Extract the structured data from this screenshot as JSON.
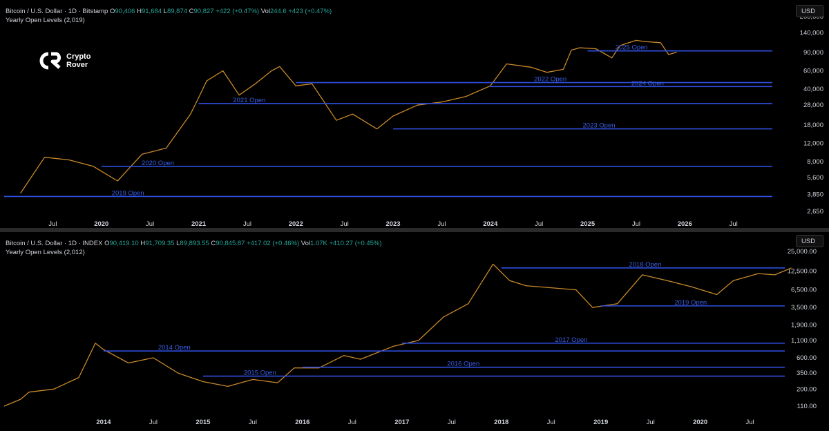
{
  "chart_data": [
    {
      "type": "line",
      "symbol_title": "Bitcoin / U.S. Dollar · 1D · Bitstamp",
      "ohlc": [
        {
          "k": "O",
          "v": "90,406"
        },
        {
          "k": "H",
          "v": "91,684"
        },
        {
          "k": "L",
          "v": "89,874"
        },
        {
          "k": "C",
          "v": "90,827"
        }
      ],
      "change": "+422 (+0.47%)",
      "vol_label": "Vol",
      "vol_value": "244.6",
      "vol_change": "+423 (+0.47%)",
      "study": "Yearly Open Levels (2,019)",
      "currency_button": "USD",
      "scale": "log",
      "ylim": [
        2650,
        200000
      ],
      "y_ticks": [
        "200,000",
        "140,000",
        "90,000",
        "60,000",
        "40,000",
        "28,000",
        "18,000",
        "12,000",
        "8,000",
        "5,600",
        "3,850",
        "2,650"
      ],
      "x_ticks": [
        {
          "label": "Jul",
          "bold": false
        },
        {
          "label": "2020",
          "bold": true
        },
        {
          "label": "Jul",
          "bold": false
        },
        {
          "label": "2021",
          "bold": true
        },
        {
          "label": "Jul",
          "bold": false
        },
        {
          "label": "2022",
          "bold": true
        },
        {
          "label": "Jul",
          "bold": false
        },
        {
          "label": "2023",
          "bold": true
        },
        {
          "label": "Jul",
          "bold": false
        },
        {
          "label": "2024",
          "bold": true
        },
        {
          "label": "Jul",
          "bold": false
        },
        {
          "label": "2025",
          "bold": true
        },
        {
          "label": "Jul",
          "bold": false
        },
        {
          "label": "2026",
          "bold": true
        },
        {
          "label": "Jul",
          "bold": false
        }
      ],
      "levels": [
        {
          "label": "2019 Open",
          "value": 3690,
          "start": "2019-01-01"
        },
        {
          "label": "2020 Open",
          "value": 7200,
          "start": "2020-01-01"
        },
        {
          "label": "2021 Open",
          "value": 29000,
          "start": "2021-01-01"
        },
        {
          "label": "2022 Open",
          "value": 46200,
          "start": "2022-01-01"
        },
        {
          "label": "2023 Open",
          "value": 16550,
          "start": "2023-01-01"
        },
        {
          "label": "2024 Open",
          "value": 42300,
          "start": "2024-01-01"
        },
        {
          "label": "2025 Open",
          "value": 93400,
          "start": "2025-01-01"
        }
      ],
      "series": [
        {
          "x": [
            "2019-03",
            "2019-06",
            "2019-09",
            "2019-12",
            "2020-03",
            "2020-06",
            "2020-09",
            "2020-12",
            "2021-01",
            "2021-02",
            "2021-04",
            "2021-06",
            "2021-08",
            "2021-10",
            "2021-11",
            "2022-01",
            "2022-03",
            "2022-06",
            "2022-08",
            "2022-11",
            "2023-01",
            "2023-04",
            "2023-07",
            "2023-10",
            "2024-01",
            "2024-03",
            "2024-06",
            "2024-08",
            "2024-10",
            "2024-11",
            "2024-12",
            "2025-02",
            "2025-04",
            "2025-05",
            "2025-07",
            "2025-08",
            "2025-10",
            "2025-11",
            "2025-12"
          ],
          "y": [
            3950,
            8800,
            8300,
            7200,
            5200,
            9400,
            10800,
            23000,
            33000,
            48000,
            60000,
            35000,
            45000,
            60000,
            66000,
            43000,
            45000,
            20000,
            23000,
            16500,
            22000,
            28000,
            30000,
            34000,
            43000,
            70000,
            65000,
            58000,
            62000,
            95000,
            100000,
            98000,
            80000,
            105000,
            118000,
            115000,
            112000,
            86000,
            90827
          ]
        }
      ]
    },
    {
      "type": "line",
      "symbol_title": "Bitcoin / U.S. Dollar · 1D · INDEX",
      "ohlc": [
        {
          "k": "O",
          "v": "90,419.10"
        },
        {
          "k": "H",
          "v": "91,709.35"
        },
        {
          "k": "L",
          "v": "89,893.55"
        },
        {
          "k": "C",
          "v": "90,845.87"
        }
      ],
      "change": "+417.02 (+0.46%)",
      "vol_label": "Vol",
      "vol_value": "1.07K",
      "vol_change": "+410.27 (+0.45%)",
      "study": "Yearly Open Levels (2,012)",
      "currency_button": "USD",
      "scale": "log",
      "ylim": [
        110,
        25000
      ],
      "y_ticks": [
        "25,000.00",
        "12,500.00",
        "6,500.00",
        "3,500.00",
        "1,900.00",
        "1,100.00",
        "600.00",
        "350.00",
        "200.00",
        "110.00"
      ],
      "x_ticks": [
        {
          "label": "2014",
          "bold": true
        },
        {
          "label": "Jul",
          "bold": false
        },
        {
          "label": "2015",
          "bold": true
        },
        {
          "label": "Jul",
          "bold": false
        },
        {
          "label": "2016",
          "bold": true
        },
        {
          "label": "Jul",
          "bold": false
        },
        {
          "label": "2017",
          "bold": true
        },
        {
          "label": "Jul",
          "bold": false
        },
        {
          "label": "2018",
          "bold": true
        },
        {
          "label": "Jul",
          "bold": false
        },
        {
          "label": "2019",
          "bold": true
        },
        {
          "label": "Jul",
          "bold": false
        },
        {
          "label": "2020",
          "bold": true
        },
        {
          "label": "Jul",
          "bold": false
        }
      ],
      "levels": [
        {
          "label": "2014 Open",
          "value": 760,
          "start": "2014-01-01"
        },
        {
          "label": "2015 Open",
          "value": 315,
          "start": "2015-01-01"
        },
        {
          "label": "2016 Open",
          "value": 430,
          "start": "2016-01-01"
        },
        {
          "label": "2017 Open",
          "value": 1000,
          "start": "2017-01-01"
        },
        {
          "label": "2018 Open",
          "value": 14000,
          "start": "2018-01-01"
        },
        {
          "label": "2019 Open",
          "value": 3700,
          "start": "2019-01-01"
        }
      ],
      "series": [
        {
          "x": [
            "2013-01",
            "2013-03",
            "2013-04",
            "2013-07",
            "2013-10",
            "2013-12",
            "2014-01",
            "2014-04",
            "2014-07",
            "2014-10",
            "2015-01",
            "2015-04",
            "2015-07",
            "2015-10",
            "2015-12",
            "2016-03",
            "2016-06",
            "2016-08",
            "2016-12",
            "2017-03",
            "2017-06",
            "2017-09",
            "2017-12",
            "2018-02",
            "2018-04",
            "2018-07",
            "2018-10",
            "2018-12",
            "2019-03",
            "2019-06",
            "2019-09",
            "2019-12",
            "2020-03",
            "2020-05",
            "2020-08",
            "2020-10",
            "2020-12"
          ],
          "y": [
            110,
            140,
            180,
            200,
            300,
            1000,
            800,
            500,
            600,
            350,
            260,
            220,
            280,
            250,
            420,
            420,
            650,
            570,
            900,
            1100,
            2500,
            4000,
            16000,
            9000,
            7500,
            7000,
            6500,
            3500,
            4000,
            11000,
            9000,
            7200,
            5500,
            9000,
            11500,
            11000,
            14000
          ]
        }
      ]
    }
  ],
  "brand": {
    "name_line1": "Crypto",
    "name_line2": "Rover"
  },
  "colors": {
    "level_line": "#2f4fe0",
    "level_label": "#3a5ee8",
    "price_line": "#c98a2a",
    "price_line_up": "#26a69a",
    "axis_text": "#d1d4dc",
    "background": "#000000"
  }
}
